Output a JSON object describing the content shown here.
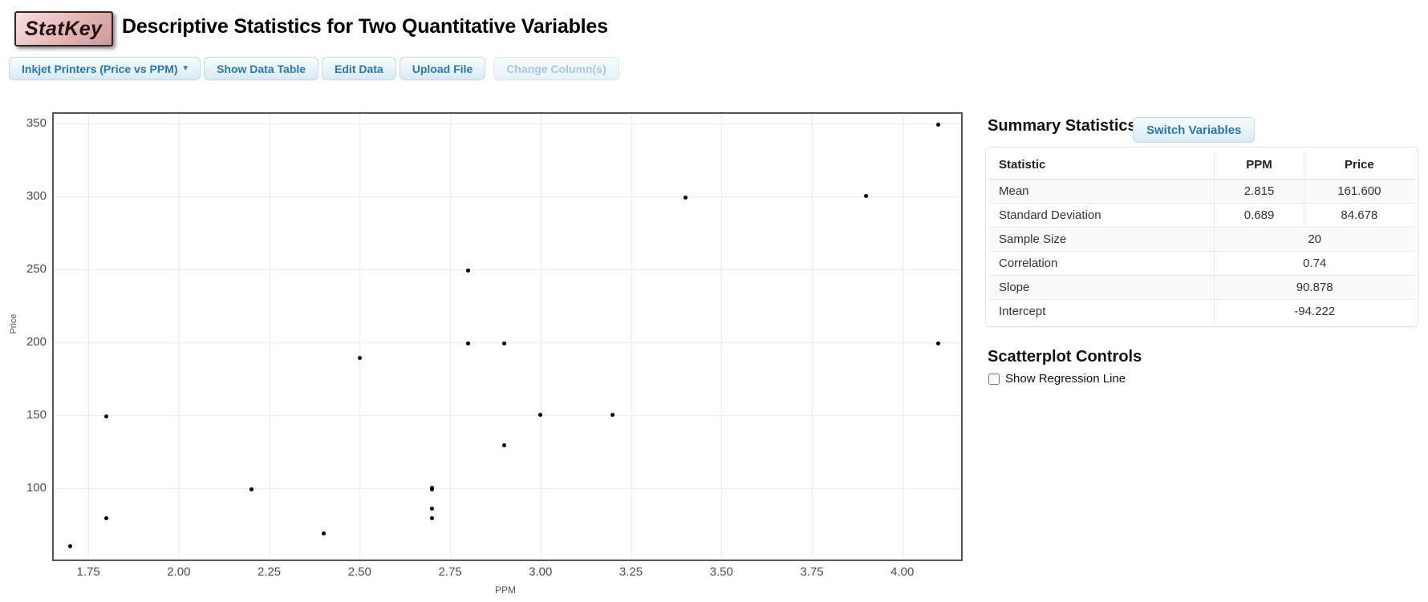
{
  "header": {
    "logo": "StatKey",
    "title": "Descriptive Statistics for Two Quantitative Variables"
  },
  "toolbar": {
    "dataset_button": "Inkjet Printers (Price vs PPM)",
    "dataset_caret": "▾",
    "show_data_table": "Show Data Table",
    "edit_data": "Edit Data",
    "upload_file": "Upload File",
    "change_columns": "Change Column(s)"
  },
  "summary": {
    "heading": "Summary Statistics",
    "switch_variables": "Switch Variables",
    "table": {
      "headers": [
        "Statistic",
        "PPM",
        "Price"
      ],
      "rows": [
        {
          "label": "Mean",
          "ppm": "2.815",
          "price": "161.600",
          "span": false
        },
        {
          "label": "Standard Deviation",
          "ppm": "0.689",
          "price": "84.678",
          "span": false
        },
        {
          "label": "Sample Size",
          "value": "20",
          "span": true
        },
        {
          "label": "Correlation",
          "value": "0.74",
          "span": true
        },
        {
          "label": "Slope",
          "value": "90.878",
          "span": true
        },
        {
          "label": "Intercept",
          "value": "-94.222",
          "span": true
        }
      ]
    }
  },
  "controls": {
    "heading": "Scatterplot Controls",
    "regression_label": "Show Regression Line",
    "regression_checked": false
  },
  "chart_data": {
    "type": "scatter",
    "xlabel": "PPM",
    "ylabel": "Price",
    "xlim": [
      1.65,
      4.158
    ],
    "ylim": [
      52,
      357.5
    ],
    "x_ticks": [
      1.75,
      2.0,
      2.25,
      2.5,
      2.75,
      3.0,
      3.25,
      3.5,
      3.75,
      4.0
    ],
    "x_tick_labels": [
      "1.75",
      "2.00",
      "2.25",
      "2.50",
      "2.75",
      "3.00",
      "3.25",
      "3.50",
      "3.75",
      "4.00"
    ],
    "y_ticks": [
      100,
      150,
      200,
      250,
      300,
      350
    ],
    "y_tick_labels": [
      "100",
      "150",
      "200",
      "250",
      "300",
      "350"
    ],
    "grid": true,
    "points": [
      {
        "ppm": 1.7,
        "price": 60
      },
      {
        "ppm": 1.8,
        "price": 79
      },
      {
        "ppm": 1.8,
        "price": 149
      },
      {
        "ppm": 2.2,
        "price": 99
      },
      {
        "ppm": 2.4,
        "price": 69
      },
      {
        "ppm": 2.5,
        "price": 189
      },
      {
        "ppm": 2.7,
        "price": 79
      },
      {
        "ppm": 2.7,
        "price": 86
      },
      {
        "ppm": 2.7,
        "price": 99
      },
      {
        "ppm": 2.7,
        "price": 100
      },
      {
        "ppm": 2.8,
        "price": 199
      },
      {
        "ppm": 2.8,
        "price": 249
      },
      {
        "ppm": 2.9,
        "price": 129
      },
      {
        "ppm": 2.9,
        "price": 199
      },
      {
        "ppm": 3.0,
        "price": 150
      },
      {
        "ppm": 3.2,
        "price": 150
      },
      {
        "ppm": 3.4,
        "price": 299
      },
      {
        "ppm": 3.9,
        "price": 300
      },
      {
        "ppm": 4.1,
        "price": 199
      },
      {
        "ppm": 4.1,
        "price": 349
      }
    ]
  },
  "colors": {
    "button_text": "#2d76b0",
    "button_bg_bottom": "#d8ebf7",
    "disabled_text": "#a9c8de",
    "logo_bg": "#e0b0b0",
    "plot_border": "#55565a",
    "gridline": "#ececec",
    "point": "#000000"
  }
}
